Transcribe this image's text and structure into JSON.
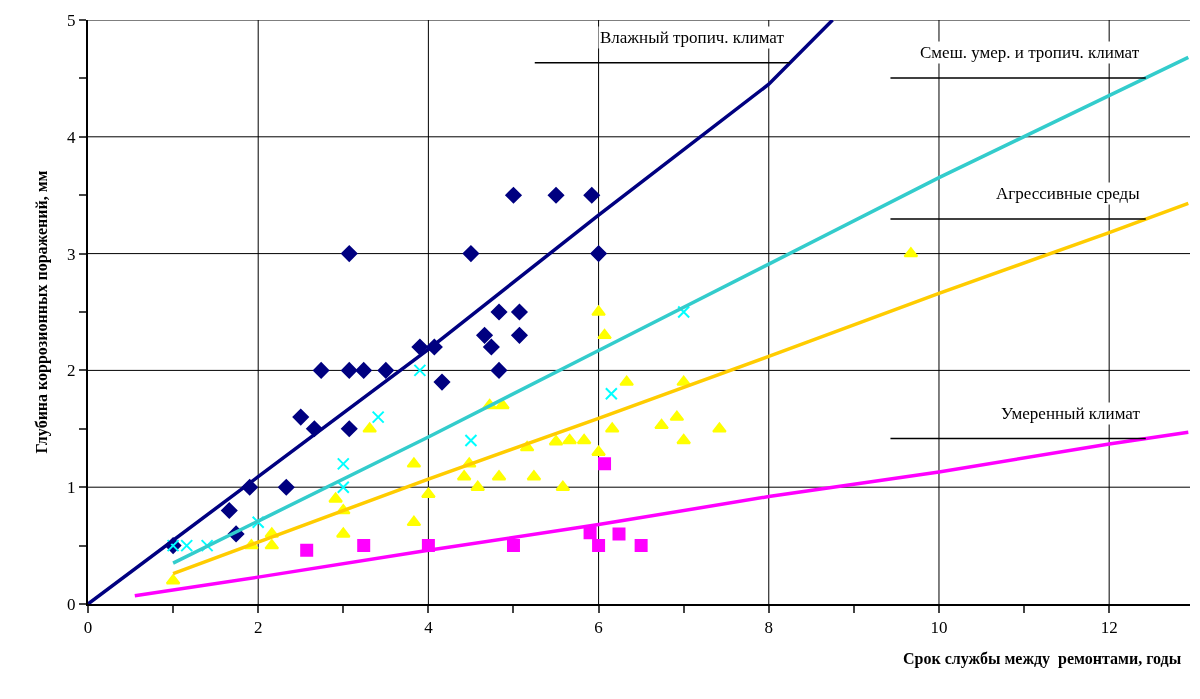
{
  "chart_data": {
    "type": "scatter",
    "xlabel": "Срок службы между  ремонтами, годы",
    "ylabel": "Глубина коррозионных поражений, мм",
    "xlim": [
      0,
      12.95
    ],
    "ylim": [
      0,
      5
    ],
    "xticks": [
      0,
      {
        "value": 1,
        "label": null
      },
      2,
      {
        "value": 3,
        "label": null
      },
      4,
      {
        "value": 5,
        "label": null
      },
      6,
      {
        "value": 7,
        "label": null
      },
      8,
      {
        "value": 9,
        "label": null
      },
      10,
      {
        "value": 11,
        "label": null
      },
      12
    ],
    "yticks": [
      0,
      {
        "value": 0.5,
        "label": null
      },
      1,
      {
        "value": 1.5,
        "label": null
      },
      2,
      {
        "value": 2.5,
        "label": null
      },
      3,
      {
        "value": 3.5,
        "label": null
      },
      4,
      {
        "value": 4.5,
        "label": null
      },
      5
    ],
    "grid": true,
    "legend": false,
    "series": [
      {
        "marker": "diamond",
        "color": "#000080",
        "x": [
          1.0,
          1.66,
          1.74,
          1.9,
          2.33,
          2.5,
          2.66,
          2.74,
          3.07,
          3.07,
          3.07,
          3.24,
          3.5,
          3.9,
          4.07,
          4.16,
          4.5,
          4.66,
          4.74,
          4.83,
          4.83,
          5.0,
          5.07,
          5.07,
          5.5,
          5.92,
          6.0
        ],
        "values": [
          0.5,
          0.8,
          0.6,
          1.0,
          1.0,
          1.6,
          1.5,
          2.0,
          3.0,
          2.0,
          1.5,
          2.0,
          2.0,
          2.2,
          2.2,
          1.9,
          3.0,
          2.3,
          2.2,
          2.5,
          2.0,
          3.5,
          2.5,
          2.3,
          3.5,
          3.5,
          3.0
        ]
      },
      {
        "marker": "cross",
        "color": "#00ffff",
        "x": [
          1.0,
          1.16,
          1.4,
          2.0,
          3.0,
          3.0,
          3.41,
          3.9,
          4.5,
          6.15,
          7.0
        ],
        "values": [
          0.5,
          0.5,
          0.5,
          0.7,
          1.2,
          1.0,
          1.6,
          2.0,
          1.4,
          1.8,
          2.5
        ]
      },
      {
        "marker": "triangle",
        "color": "#ffff00",
        "x": [
          1.0,
          1.92,
          2.16,
          2.16,
          2.91,
          3.0,
          3.0,
          3.31,
          3.83,
          3.83,
          4.0,
          4.42,
          4.48,
          4.58,
          4.72,
          4.87,
          4.83,
          5.16,
          5.24,
          5.5,
          5.66,
          5.83,
          5.58,
          6.0,
          6.07,
          6.0,
          6.16,
          6.33,
          6.74,
          6.92,
          7.0,
          7.0,
          7.42,
          9.67
        ],
        "values": [
          0.2,
          0.5,
          0.6,
          0.5,
          0.9,
          0.8,
          0.6,
          1.5,
          1.2,
          0.7,
          0.94,
          1.09,
          1.2,
          1.0,
          1.7,
          1.7,
          1.09,
          1.34,
          1.09,
          1.39,
          1.4,
          1.4,
          1.0,
          2.5,
          2.3,
          1.3,
          1.5,
          1.9,
          1.53,
          1.6,
          1.9,
          1.4,
          1.5,
          3.0
        ]
      },
      {
        "marker": "square",
        "color": "#ff00ff",
        "x": [
          2.57,
          3.24,
          4.0,
          5.0,
          5.9,
          6.0,
          6.07,
          6.24,
          6.5
        ],
        "values": [
          0.46,
          0.5,
          0.5,
          0.5,
          0.61,
          0.5,
          1.2,
          0.6,
          0.5
        ]
      },
      {
        "type": "line",
        "name": "Влажный тропич. климат",
        "line_style": "solid",
        "color": "#000080",
        "x": [
          0,
          2,
          4,
          6,
          8,
          8.75
        ],
        "values": [
          0,
          1.09,
          2.18,
          3.33,
          4.45,
          5.0
        ]
      },
      {
        "type": "line",
        "name": "Смеш. умер. и тропич. климат",
        "line_style": "solid",
        "color": "#33cccc",
        "x": [
          1,
          2,
          4,
          6,
          8,
          10,
          12.93
        ],
        "values": [
          0.35,
          0.71,
          1.43,
          2.17,
          2.91,
          3.65,
          4.68
        ]
      },
      {
        "type": "line",
        "name": "Агрессивные среды",
        "line_style": "solid",
        "color": "#ffcc00",
        "x": [
          1,
          2,
          4,
          6,
          8,
          10,
          12,
          12.93
        ],
        "values": [
          0.26,
          0.53,
          1.07,
          1.59,
          2.12,
          2.66,
          3.18,
          3.43
        ]
      },
      {
        "type": "line",
        "name": "Умеренный климат",
        "line_style": "solid",
        "color": "#ff00ff",
        "x": [
          0.55,
          2,
          4,
          6,
          8,
          10,
          12,
          12.93
        ],
        "values": [
          0.07,
          0.23,
          0.46,
          0.68,
          0.92,
          1.13,
          1.37,
          1.47
        ]
      }
    ]
  }
}
